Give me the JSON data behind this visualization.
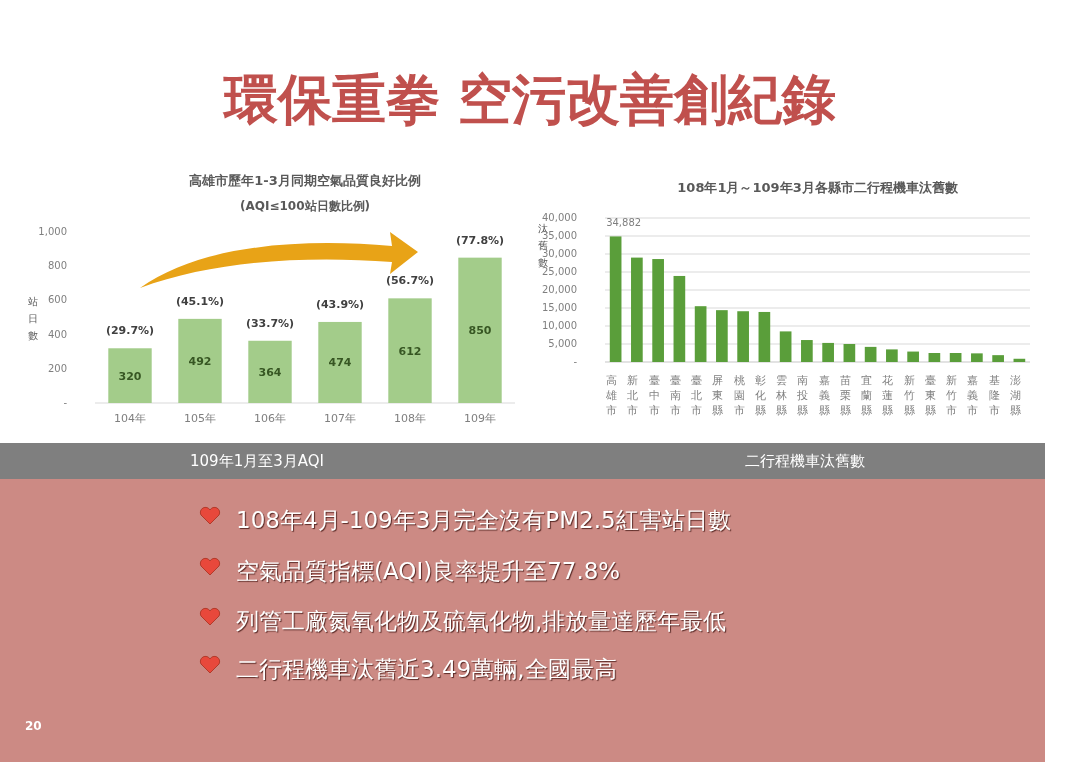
{
  "chart_data": [
    {
      "type": "bar",
      "title": "高雄市歷年1-3月同期空氣品質良好比例",
      "subtitle": "(AQI≤100站日數比例)",
      "ylabel": "站日數",
      "categories": [
        "104年",
        "105年",
        "106年",
        "107年",
        "108年",
        "109年"
      ],
      "values": [
        320,
        492,
        364,
        474,
        612,
        850
      ],
      "color": "#a3cc8a",
      "data_labels": true,
      "ylim": [
        0,
        1000
      ],
      "yticks": [
        {
          "value": 0,
          "label": "-"
        },
        200,
        400,
        600,
        800,
        {
          "value": 1000,
          "label": "1,000"
        }
      ],
      "grid": false,
      "annotations": [
        {
          "text": "(29.7%)",
          "x": "104年",
          "y": 320
        },
        {
          "text": "(45.1%)",
          "x": "105年",
          "y": 492
        },
        {
          "text": "(33.7%)",
          "x": "106年",
          "y": 364
        },
        {
          "text": "(43.9%)",
          "x": "107年",
          "y": 474
        },
        {
          "text": "(56.7%)",
          "x": "108年",
          "y": 612
        },
        {
          "text": "(77.8%)",
          "x": "109年",
          "y": 850
        },
        "109年1月至3月AQI"
      ]
    },
    {
      "type": "bar",
      "title": "108年1月～109年3月各縣市二行程機車汰舊數",
      "ylabel": "汰舊數",
      "categories": [
        "高雄市",
        "新北市",
        "臺中市",
        "臺南市",
        "臺北市",
        "屏東縣",
        "桃園市",
        "彰化縣",
        "雲林縣",
        "南投縣",
        "嘉義縣",
        "苗栗縣",
        "宜蘭縣",
        "花蓮縣",
        "新竹縣",
        "臺東縣",
        "新竹市",
        "嘉義市",
        "基隆市",
        "澎湖縣"
      ],
      "values": [
        34882,
        29000,
        28600,
        23900,
        15500,
        14400,
        14100,
        13900,
        8500,
        6100,
        5300,
        5000,
        4200,
        3500,
        2900,
        2500,
        2500,
        2400,
        1900,
        900
      ],
      "value_labels": [
        "34,882",
        null,
        null,
        null,
        null,
        null,
        null,
        null,
        null,
        null,
        null,
        null,
        null,
        null,
        null,
        null,
        null,
        null,
        null,
        null
      ],
      "color": "#5a9e3a",
      "ylim": [
        0,
        40000
      ],
      "yticks": [
        {
          "value": 0,
          "label": "-"
        },
        {
          "value": 5000,
          "label": "5,000"
        },
        {
          "value": 10000,
          "label": "10,000"
        },
        {
          "value": 15000,
          "label": "15,000"
        },
        {
          "value": 20000,
          "label": "20,000"
        },
        {
          "value": 25000,
          "label": "25,000"
        },
        {
          "value": 30000,
          "label": "30,000"
        },
        {
          "value": 35000,
          "label": "35,000"
        },
        {
          "value": 40000,
          "label": "40,000"
        }
      ],
      "grid": "y",
      "annotations": [
        "二行程機車汰舊數"
      ]
    },
    {
      "type": "other",
      "title": "環保重拳  空污改善創紀錄",
      "annotations": [
        "108年4月-109年3月完全沒有PM2.5紅害站日數",
        "空氣品質指標(AQI)良率提升至77.8%",
        "列管工廠氮氧化物及硫氧化物,排放量達歷年最低",
        "二行程機車汰舊近3.49萬輛,全國最高",
        "20"
      ]
    }
  ]
}
